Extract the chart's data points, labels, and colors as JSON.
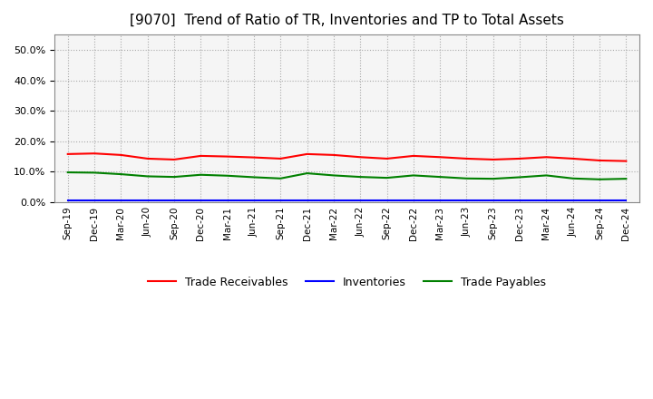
{
  "title": "[9070]  Trend of Ratio of TR, Inventories and TP to Total Assets",
  "x_labels": [
    "Sep-19",
    "Dec-19",
    "Mar-20",
    "Jun-20",
    "Sep-20",
    "Dec-20",
    "Mar-21",
    "Jun-21",
    "Sep-21",
    "Dec-21",
    "Mar-22",
    "Jun-22",
    "Sep-22",
    "Dec-22",
    "Mar-23",
    "Jun-23",
    "Sep-23",
    "Dec-23",
    "Mar-24",
    "Jun-24",
    "Sep-24",
    "Dec-24"
  ],
  "trade_receivables": [
    0.158,
    0.16,
    0.155,
    0.143,
    0.14,
    0.152,
    0.15,
    0.147,
    0.143,
    0.158,
    0.155,
    0.148,
    0.143,
    0.152,
    0.148,
    0.143,
    0.14,
    0.143,
    0.148,
    0.143,
    0.137,
    0.135
  ],
  "inventories": [
    0.007,
    0.007,
    0.007,
    0.007,
    0.007,
    0.007,
    0.007,
    0.007,
    0.007,
    0.007,
    0.007,
    0.007,
    0.007,
    0.007,
    0.007,
    0.007,
    0.007,
    0.007,
    0.007,
    0.007,
    0.007,
    0.007
  ],
  "trade_payables": [
    0.098,
    0.097,
    0.092,
    0.085,
    0.083,
    0.09,
    0.087,
    0.082,
    0.078,
    0.095,
    0.088,
    0.083,
    0.08,
    0.088,
    0.083,
    0.078,
    0.077,
    0.082,
    0.088,
    0.078,
    0.075,
    0.077
  ],
  "ylim": [
    0.0,
    0.55
  ],
  "yticks": [
    0.0,
    0.1,
    0.2,
    0.3,
    0.4,
    0.5
  ],
  "line_colors": {
    "trade_receivables": "#ff0000",
    "inventories": "#0000ff",
    "trade_payables": "#008000"
  },
  "plot_bg_color": "#f5f5f5",
  "background_color": "#ffffff",
  "grid_color": "#aaaaaa",
  "title_fontsize": 11,
  "legend_labels": [
    "Trade Receivables",
    "Inventories",
    "Trade Payables"
  ]
}
